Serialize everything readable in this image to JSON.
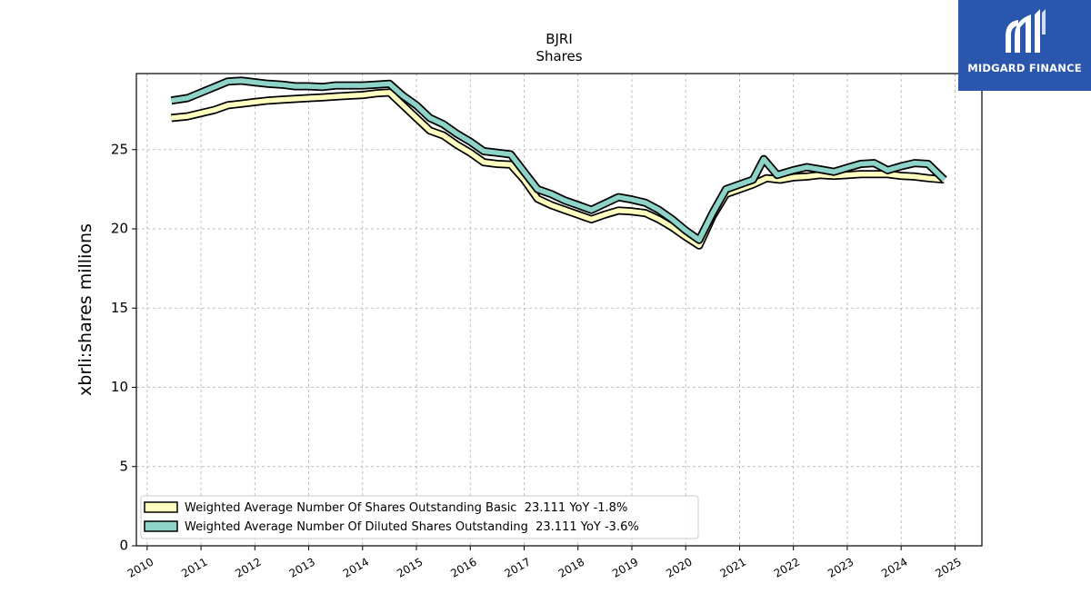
{
  "chart_data": {
    "type": "line",
    "title": "BJRI",
    "subtitle": "Shares",
    "xlabel": "",
    "ylabel": "xbrli:shares millions",
    "xlim": [
      2009.8,
      2025.5
    ],
    "ylim": [
      0,
      29.8
    ],
    "x_ticks": [
      "2010",
      "2011",
      "2012",
      "2013",
      "2014",
      "2015",
      "2016",
      "2017",
      "2018",
      "2019",
      "2020",
      "2021",
      "2022",
      "2023",
      "2024",
      "2025"
    ],
    "y_ticks": [
      "0",
      "5",
      "10",
      "15",
      "20",
      "25"
    ],
    "grid": true,
    "legend_position": "lower-left",
    "series": [
      {
        "name": "Weighted Average Number Of Shares Outstanding Basic  23.111 YoY -1.8%",
        "color": "#ffffc0",
        "points": [
          [
            2010.45,
            27.0
          ],
          [
            2010.75,
            27.1
          ],
          [
            2011.0,
            27.3
          ],
          [
            2011.25,
            27.5
          ],
          [
            2011.5,
            27.8
          ],
          [
            2011.75,
            27.9
          ],
          [
            2012.0,
            28.0
          ],
          [
            2012.25,
            28.1
          ],
          [
            2012.5,
            28.15
          ],
          [
            2012.75,
            28.2
          ],
          [
            2013.0,
            28.25
          ],
          [
            2013.25,
            28.3
          ],
          [
            2013.5,
            28.35
          ],
          [
            2013.75,
            28.4
          ],
          [
            2014.0,
            28.45
          ],
          [
            2014.25,
            28.55
          ],
          [
            2014.5,
            28.6
          ],
          [
            2014.75,
            27.8
          ],
          [
            2015.0,
            27.0
          ],
          [
            2015.25,
            26.2
          ],
          [
            2015.5,
            25.9
          ],
          [
            2015.75,
            25.3
          ],
          [
            2016.0,
            24.8
          ],
          [
            2016.25,
            24.2
          ],
          [
            2016.5,
            24.1
          ],
          [
            2016.75,
            24.05
          ],
          [
            2017.0,
            23.1
          ],
          [
            2017.25,
            21.9
          ],
          [
            2017.5,
            21.5
          ],
          [
            2017.75,
            21.2
          ],
          [
            2018.0,
            20.9
          ],
          [
            2018.25,
            20.6
          ],
          [
            2018.5,
            20.9
          ],
          [
            2018.75,
            21.15
          ],
          [
            2019.0,
            21.1
          ],
          [
            2019.25,
            21.0
          ],
          [
            2019.5,
            20.6
          ],
          [
            2019.75,
            20.1
          ],
          [
            2020.0,
            19.5
          ],
          [
            2020.25,
            18.95
          ],
          [
            2020.5,
            20.8
          ],
          [
            2020.75,
            22.2
          ],
          [
            2021.0,
            22.5
          ],
          [
            2021.25,
            22.8
          ],
          [
            2021.5,
            23.2
          ],
          [
            2021.75,
            23.1
          ],
          [
            2022.0,
            23.25
          ],
          [
            2022.25,
            23.3
          ],
          [
            2022.5,
            23.4
          ],
          [
            2022.75,
            23.35
          ],
          [
            2023.0,
            23.4
          ],
          [
            2023.25,
            23.45
          ],
          [
            2023.5,
            23.45
          ],
          [
            2023.75,
            23.45
          ],
          [
            2024.0,
            23.35
          ],
          [
            2024.25,
            23.3
          ],
          [
            2024.5,
            23.2
          ],
          [
            2024.8,
            23.111
          ]
        ]
      },
      {
        "name": "Weighted Average Number Of Diluted Shares Outstanding  23.111 YoY -3.6%",
        "color": "#8dd3c7",
        "points": [
          [
            2010.45,
            28.1
          ],
          [
            2010.75,
            28.25
          ],
          [
            2011.0,
            28.6
          ],
          [
            2011.25,
            28.95
          ],
          [
            2011.5,
            29.3
          ],
          [
            2011.75,
            29.35
          ],
          [
            2012.0,
            29.25
          ],
          [
            2012.25,
            29.15
          ],
          [
            2012.5,
            29.1
          ],
          [
            2012.75,
            29.0
          ],
          [
            2013.0,
            29.0
          ],
          [
            2013.25,
            28.95
          ],
          [
            2013.5,
            29.05
          ],
          [
            2013.75,
            29.05
          ],
          [
            2014.0,
            29.05
          ],
          [
            2014.25,
            29.1
          ],
          [
            2014.5,
            29.15
          ],
          [
            2014.75,
            28.4
          ],
          [
            2015.0,
            27.8
          ],
          [
            2015.25,
            27.0
          ],
          [
            2015.5,
            26.6
          ],
          [
            2015.75,
            26.0
          ],
          [
            2016.0,
            25.5
          ],
          [
            2016.25,
            24.9
          ],
          [
            2016.5,
            24.8
          ],
          [
            2016.75,
            24.7
          ],
          [
            2017.0,
            23.6
          ],
          [
            2017.25,
            22.5
          ],
          [
            2017.5,
            22.2
          ],
          [
            2017.75,
            21.8
          ],
          [
            2018.0,
            21.5
          ],
          [
            2018.25,
            21.2
          ],
          [
            2018.5,
            21.6
          ],
          [
            2018.75,
            22.0
          ],
          [
            2019.0,
            21.85
          ],
          [
            2019.25,
            21.65
          ],
          [
            2019.5,
            21.2
          ],
          [
            2019.75,
            20.6
          ],
          [
            2020.0,
            19.9
          ],
          [
            2020.25,
            19.3
          ],
          [
            2020.5,
            21.0
          ],
          [
            2020.75,
            22.5
          ],
          [
            2021.0,
            22.8
          ],
          [
            2021.25,
            23.1
          ],
          [
            2021.45,
            24.4
          ],
          [
            2021.7,
            23.4
          ],
          [
            2022.0,
            23.7
          ],
          [
            2022.25,
            23.9
          ],
          [
            2022.5,
            23.75
          ],
          [
            2022.75,
            23.6
          ],
          [
            2023.0,
            23.85
          ],
          [
            2023.25,
            24.1
          ],
          [
            2023.5,
            24.15
          ],
          [
            2023.75,
            23.7
          ],
          [
            2024.0,
            23.95
          ],
          [
            2024.25,
            24.15
          ],
          [
            2024.5,
            24.1
          ],
          [
            2024.8,
            23.111
          ]
        ]
      }
    ]
  },
  "logo": {
    "text": "MIDGARD FINANCE",
    "background": "#2a57ad",
    "icon": "midgard-logo-icon"
  }
}
